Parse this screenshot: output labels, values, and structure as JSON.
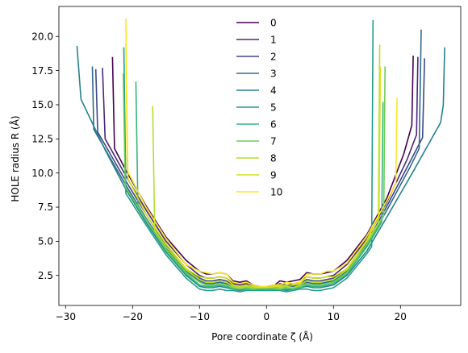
{
  "chart_data": {
    "type": "line",
    "title": "",
    "xlabel": "Pore coordinate ζ (Å)",
    "ylabel": "HOLE radius R (Å)",
    "xlim": [
      -31,
      29
    ],
    "ylim": [
      0.3,
      22.2
    ],
    "xticks": [
      -30,
      -20,
      -10,
      0,
      10,
      20
    ],
    "yticks": [
      2.5,
      5.0,
      7.5,
      10.0,
      12.5,
      15.0,
      17.5,
      20.0
    ],
    "xtick_labels": [
      "−30",
      "−20",
      "−10",
      "0",
      "10",
      "20"
    ],
    "ytick_labels": [
      "2.5",
      "5.0",
      "7.5",
      "10.0",
      "12.5",
      "15.0",
      "17.5",
      "20.0"
    ],
    "grid": false,
    "legend_position": "top-center",
    "series": [
      {
        "name": "0",
        "color": "#440154",
        "x": [
          -23.0,
          -22.7,
          -21.0,
          -18.0,
          -15.0,
          -12.0,
          -10.0,
          -9.0,
          -8.0,
          -7.0,
          -6.0,
          -5.0,
          -4.0,
          -3.0,
          -2.0,
          -1.0,
          0.0,
          1.0,
          2.0,
          3.0,
          4.0,
          5.0,
          6.0,
          7.0,
          8.0,
          9.0,
          10.0,
          12.0,
          15.0,
          18.0,
          20.5,
          21.7,
          21.9
        ],
        "y": [
          18.5,
          11.8,
          10.2,
          7.6,
          5.3,
          3.6,
          2.8,
          2.6,
          2.6,
          2.7,
          2.6,
          2.1,
          2.0,
          2.1,
          1.8,
          1.7,
          1.7,
          1.7,
          2.1,
          2.0,
          2.1,
          2.2,
          2.7,
          2.6,
          2.6,
          2.7,
          2.8,
          3.6,
          5.5,
          8.2,
          11.4,
          13.5,
          18.6
        ]
      },
      {
        "name": "1",
        "color": "#482878",
        "x": [
          -24.5,
          -24.1,
          -21.0,
          -18.0,
          -15.0,
          -12.0,
          -10.0,
          -9.0,
          -8.0,
          -7.0,
          -6.0,
          -5.0,
          -4.0,
          -3.0,
          -2.0,
          -1.0,
          0.0,
          1.0,
          2.0,
          3.0,
          4.0,
          5.0,
          6.0,
          7.0,
          8.0,
          9.0,
          10.0,
          12.0,
          15.0,
          18.0,
          21.0,
          22.4,
          22.6
        ],
        "y": [
          17.7,
          12.5,
          9.8,
          7.3,
          5.0,
          3.3,
          2.5,
          2.3,
          2.3,
          2.4,
          2.3,
          1.9,
          1.8,
          1.9,
          1.7,
          1.6,
          1.6,
          1.6,
          1.9,
          1.8,
          1.9,
          2.0,
          2.4,
          2.3,
          2.3,
          2.4,
          2.5,
          3.3,
          5.2,
          7.9,
          11.0,
          12.8,
          18.5
        ]
      },
      {
        "name": "2",
        "color": "#3e4989",
        "x": [
          -25.5,
          -25.2,
          -21.0,
          -18.0,
          -15.0,
          -12.0,
          -10.0,
          -9.0,
          -8.0,
          -7.0,
          -6.0,
          -5.0,
          -4.0,
          -3.0,
          -2.0,
          -1.0,
          0.0,
          1.0,
          2.0,
          3.0,
          4.0,
          5.0,
          6.0,
          7.0,
          8.0,
          9.0,
          10.0,
          12.0,
          15.0,
          18.0,
          21.5,
          23.3,
          23.6
        ],
        "y": [
          17.6,
          13.0,
          9.4,
          7.0,
          4.7,
          3.0,
          2.3,
          2.1,
          2.1,
          2.2,
          2.1,
          1.8,
          1.7,
          1.8,
          1.6,
          1.6,
          1.6,
          1.6,
          1.8,
          1.7,
          1.8,
          1.9,
          2.2,
          2.1,
          2.1,
          2.2,
          2.3,
          3.0,
          4.9,
          7.6,
          10.9,
          12.6,
          18.4
        ]
      },
      {
        "name": "3",
        "color": "#31688e",
        "x": [
          -26.0,
          -25.8,
          -21.0,
          -18.0,
          -15.0,
          -12.0,
          -10.0,
          -9.0,
          -8.0,
          -7.0,
          -6.0,
          -5.0,
          -4.0,
          -3.0,
          -2.0,
          -1.0,
          0.0,
          1.0,
          2.0,
          3.0,
          4.0,
          5.0,
          6.0,
          7.0,
          8.0,
          9.0,
          10.0,
          12.0,
          15.0,
          18.0,
          21.5,
          22.8,
          23.1
        ],
        "y": [
          17.8,
          13.2,
          9.1,
          6.7,
          4.5,
          2.8,
          2.1,
          1.9,
          1.9,
          2.0,
          1.9,
          1.7,
          1.6,
          1.7,
          1.6,
          1.6,
          1.6,
          1.6,
          1.7,
          1.6,
          1.7,
          1.8,
          2.0,
          1.9,
          1.9,
          2.0,
          2.1,
          2.8,
          4.7,
          7.3,
          10.5,
          11.8,
          20.5
        ]
      },
      {
        "name": "4",
        "color": "#26828e",
        "x": [
          -28.3,
          -27.7,
          -24.0,
          -21.0,
          -18.0,
          -15.0,
          -12.0,
          -10.0,
          -9.0,
          -8.0,
          -7.0,
          -6.0,
          -5.0,
          -4.0,
          -3.0,
          -2.0,
          -1.0,
          0.0,
          1.0,
          2.0,
          3.0,
          4.0,
          5.0,
          6.0,
          7.0,
          8.0,
          9.0,
          10.0,
          12.0,
          15.0,
          18.0,
          22.0,
          26.0,
          26.4,
          26.6
        ],
        "y": [
          19.3,
          15.4,
          11.6,
          8.8,
          6.4,
          4.2,
          2.5,
          1.7,
          1.6,
          1.6,
          1.7,
          1.6,
          1.5,
          1.4,
          1.5,
          1.5,
          1.5,
          1.5,
          1.5,
          1.5,
          1.4,
          1.5,
          1.6,
          1.7,
          1.6,
          1.6,
          1.7,
          1.8,
          2.5,
          4.3,
          6.8,
          10.2,
          13.7,
          15.0,
          19.2
        ]
      },
      {
        "name": "5",
        "color": "#1f9e89",
        "x": [
          -21.3,
          -21.0,
          -18.0,
          -15.0,
          -12.0,
          -10.0,
          -9.0,
          -8.0,
          -7.0,
          -6.0,
          -5.0,
          -4.0,
          -3.0,
          -2.0,
          -1.0,
          0.0,
          1.0,
          2.0,
          3.0,
          4.0,
          5.0,
          6.0,
          7.0,
          8.0,
          9.0,
          10.0,
          12.0,
          15.0,
          15.7,
          15.9
        ],
        "y": [
          19.2,
          8.5,
          6.2,
          4.0,
          2.3,
          1.5,
          1.4,
          1.4,
          1.5,
          1.4,
          1.4,
          1.3,
          1.4,
          1.4,
          1.4,
          1.4,
          1.4,
          1.4,
          1.3,
          1.4,
          1.5,
          1.5,
          1.4,
          1.4,
          1.5,
          1.6,
          2.3,
          4.1,
          4.6,
          21.2
        ]
      },
      {
        "name": "6",
        "color": "#35b779",
        "x": [
          -19.5,
          -19.2,
          -18.0,
          -15.0,
          -12.0,
          -10.0,
          -9.0,
          -8.0,
          -7.0,
          -6.0,
          -5.0,
          -4.0,
          -3.0,
          -2.0,
          -1.0,
          0.0,
          1.0,
          2.0,
          3.0,
          4.0,
          5.0,
          6.0,
          7.0,
          8.0,
          9.0,
          10.0,
          12.0,
          15.0,
          17.2,
          17.4
        ],
        "y": [
          16.7,
          7.6,
          6.6,
          4.3,
          2.6,
          1.8,
          1.7,
          1.7,
          1.8,
          1.7,
          1.5,
          1.5,
          1.5,
          1.5,
          1.5,
          1.5,
          1.5,
          1.5,
          1.5,
          1.5,
          1.6,
          1.8,
          1.7,
          1.7,
          1.8,
          1.9,
          2.6,
          4.6,
          6.4,
          15.2
        ]
      },
      {
        "name": "7",
        "color": "#6ece58",
        "x": [
          -21.4,
          -21.1,
          -18.0,
          -15.0,
          -12.0,
          -10.0,
          -9.0,
          -8.0,
          -7.0,
          -6.0,
          -5.0,
          -4.0,
          -3.0,
          -2.0,
          -1.0,
          0.0,
          1.0,
          2.0,
          3.0,
          4.0,
          5.0,
          6.0,
          7.0,
          8.0,
          9.0,
          10.0,
          12.0,
          15.0,
          17.5,
          17.7
        ],
        "y": [
          17.3,
          9.0,
          6.6,
          4.4,
          2.7,
          2.0,
          1.8,
          1.8,
          1.9,
          1.8,
          1.6,
          1.5,
          1.6,
          1.5,
          1.6,
          1.6,
          1.6,
          1.5,
          1.6,
          1.6,
          1.7,
          1.9,
          1.8,
          1.8,
          1.9,
          2.0,
          2.7,
          4.8,
          6.9,
          17.8
        ]
      },
      {
        "name": "8",
        "color": "#b5de2b",
        "x": [
          -17.0,
          -16.7,
          -15.0,
          -12.0,
          -10.0,
          -9.0,
          -8.0,
          -7.0,
          -6.0,
          -5.0,
          -4.0,
          -3.0,
          -2.0,
          -1.0,
          0.0,
          1.0,
          2.0,
          3.0,
          4.0,
          5.0,
          6.0,
          7.0,
          8.0,
          9.0,
          10.0,
          12.0,
          15.0,
          16.7,
          16.9
        ],
        "y": [
          14.9,
          5.8,
          4.6,
          2.9,
          2.2,
          2.0,
          2.0,
          2.1,
          2.0,
          1.7,
          1.6,
          1.7,
          1.6,
          1.6,
          1.6,
          1.6,
          1.6,
          1.7,
          1.6,
          1.8,
          2.1,
          2.0,
          2.0,
          2.1,
          2.2,
          2.9,
          5.0,
          6.3,
          19.4
        ]
      },
      {
        "name": "9",
        "color": "#d5e21a",
        "x": [
          -21.0,
          -20.7,
          -18.0,
          -15.0,
          -12.0,
          -10.0,
          -9.0,
          -8.0,
          -7.0,
          -6.0,
          -5.0,
          -4.0,
          -3.0,
          -2.0,
          -1.0,
          0.0,
          1.0,
          2.0,
          3.0,
          4.0,
          5.0,
          6.0,
          7.0,
          8.0,
          9.0,
          10.0,
          12.0,
          15.0,
          16.8,
          17.0
        ],
        "y": [
          19.5,
          9.6,
          7.0,
          4.8,
          3.0,
          2.4,
          2.3,
          2.3,
          2.4,
          2.3,
          1.8,
          1.7,
          1.8,
          1.7,
          1.6,
          1.6,
          1.7,
          1.7,
          1.8,
          1.8,
          1.9,
          2.4,
          2.3,
          2.3,
          2.4,
          2.4,
          3.0,
          5.1,
          6.9,
          17.8
        ]
      },
      {
        "name": "10",
        "color": "#fde725",
        "x": [
          -21.0,
          -20.8,
          -18.0,
          -15.0,
          -12.0,
          -10.0,
          -9.0,
          -8.0,
          -7.0,
          -6.0,
          -5.0,
          -4.0,
          -3.0,
          -2.0,
          -1.0,
          0.0,
          1.0,
          2.0,
          3.0,
          4.0,
          5.0,
          6.0,
          7.0,
          8.0,
          9.0,
          10.0,
          12.0,
          15.0,
          18.0,
          19.3,
          19.5
        ],
        "y": [
          21.3,
          10.2,
          7.5,
          5.2,
          3.3,
          2.8,
          2.7,
          2.6,
          2.7,
          2.6,
          2.0,
          1.9,
          2.0,
          1.8,
          1.7,
          1.7,
          1.8,
          1.8,
          2.0,
          1.9,
          2.0,
          2.6,
          2.6,
          2.6,
          2.8,
          2.8,
          3.4,
          5.4,
          8.0,
          9.2,
          15.5
        ]
      }
    ]
  }
}
